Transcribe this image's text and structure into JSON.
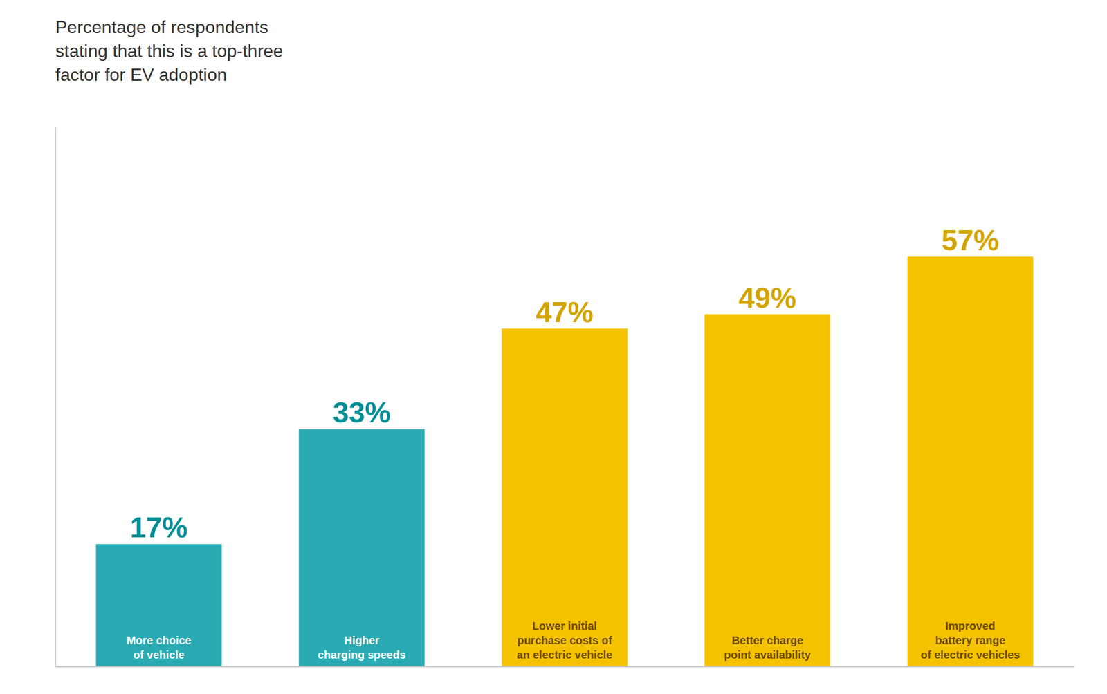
{
  "chart_data": {
    "type": "bar",
    "title": "Percentage of respondents\nstating that this is a top-three\nfactor for EV adoption",
    "categories": [
      "More choice\nof vehicle",
      "Higher\ncharging speeds",
      "Lower initial\npurchase costs of\nan electric vehicle",
      "Better charge\npoint availability",
      "Improved\nbattery range\nof electric vehicles"
    ],
    "values": [
      17,
      33,
      47,
      49,
      57
    ],
    "value_labels": [
      "17%",
      "33%",
      "47%",
      "49%",
      "57%"
    ],
    "colors": [
      "#2AABB3",
      "#2AABB3",
      "#F5C200",
      "#F5C200",
      "#F5C200"
    ],
    "ylim": [
      0,
      75
    ],
    "data_labels": true,
    "tick_labels": "x",
    "grid": false
  }
}
